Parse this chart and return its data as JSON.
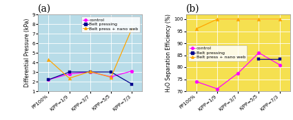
{
  "categories": [
    "PP100%",
    "K/PP=1/9",
    "K/PP=3/7",
    "K/PP=5/5",
    "K/PP=7/3"
  ],
  "chart_a": {
    "title": "(a)",
    "ylabel": "Differential Pressure (kPa)",
    "ylim": [
      1,
      9
    ],
    "yticks": [
      1,
      2,
      3,
      4,
      5,
      6,
      7,
      8,
      9
    ],
    "control": [
      2.2,
      2.8,
      3.0,
      2.5,
      3.1
    ],
    "belt_pressing": [
      2.2,
      3.0,
      3.0,
      3.0,
      1.75
    ],
    "belt_press_nano": [
      4.3,
      2.35,
      3.05,
      2.45,
      7.5
    ],
    "legend_loc": "upper right"
  },
  "chart_b": {
    "title": "(b)",
    "ylabel": "H₂O Separation Efficiency (%)",
    "ylim": [
      70,
      102
    ],
    "yticks": [
      70,
      75,
      80,
      85,
      90,
      95,
      100
    ],
    "control": [
      74,
      71,
      77.5,
      86,
      81
    ],
    "belt_pressing": [
      null,
      null,
      null,
      83.5,
      83.5
    ],
    "belt_press_nano": [
      96,
      100,
      100,
      100,
      100
    ],
    "legend_loc": "center left"
  },
  "colors": {
    "control": "#FF00FF",
    "belt_pressing": "#00008B",
    "belt_press_nano": "#FFA500"
  },
  "legend_labels": [
    "control",
    "Belt pressing",
    "Belt press + nano web"
  ],
  "bg_color_a": "#b8dce8",
  "bg_color_b": "#f5e050",
  "fig_bg": "#ffffff",
  "title_fontsize": 10,
  "label_fontsize": 5.5,
  "tick_fontsize": 5,
  "legend_fontsize": 4.5
}
